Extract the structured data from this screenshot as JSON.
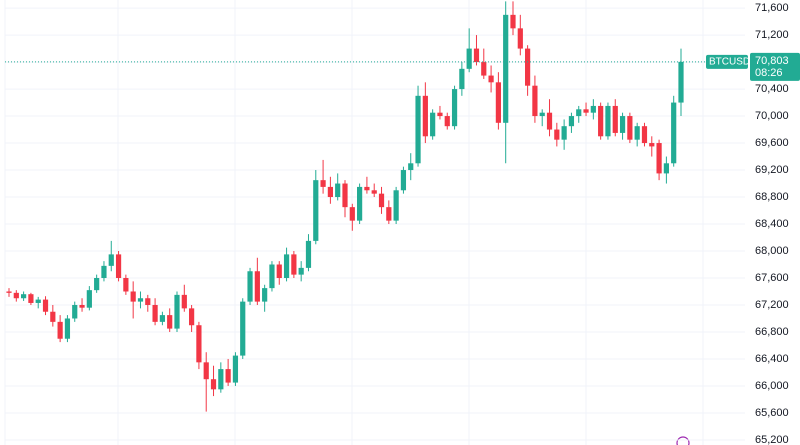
{
  "chart_data": {
    "type": "candlestick",
    "up_color": "#22ab94",
    "down_color": "#f23645",
    "grid": true,
    "ylim": [
      65125,
      71720
    ],
    "yticks": [
      {
        "value": 65200,
        "label": "65,200"
      },
      {
        "value": 65600,
        "label": "65,600"
      },
      {
        "value": 66000,
        "label": "66,000"
      },
      {
        "value": 66400,
        "label": "66,400"
      },
      {
        "value": 66800,
        "label": "66,800"
      },
      {
        "value": 67200,
        "label": "67,200"
      },
      {
        "value": 67600,
        "label": "67,600"
      },
      {
        "value": 68000,
        "label": "68,000"
      },
      {
        "value": 68400,
        "label": "68,400"
      },
      {
        "value": 68800,
        "label": "68,800"
      },
      {
        "value": 69200,
        "label": "69,200"
      },
      {
        "value": 69600,
        "label": "69,600"
      },
      {
        "value": 70000,
        "label": "70,000"
      },
      {
        "value": 70400,
        "label": "70,400"
      },
      {
        "value": 70800,
        "label": "70,800"
      },
      {
        "value": 71200,
        "label": "71,200"
      },
      {
        "value": 71600,
        "label": "71,600"
      }
    ],
    "last_price": {
      "symbol": "BTCUSD",
      "value": 70803,
      "label": "70,803",
      "countdown": "08:26"
    },
    "candles": [
      [
        67400,
        67450,
        67320,
        67380
      ],
      [
        67380,
        67420,
        67250,
        67300
      ],
      [
        67300,
        67400,
        67260,
        67360
      ],
      [
        67360,
        67380,
        67200,
        67230
      ],
      [
        67230,
        67320,
        67150,
        67280
      ],
      [
        67280,
        67330,
        67050,
        67100
      ],
      [
        67100,
        67200,
        66880,
        66950
      ],
      [
        66950,
        67050,
        66650,
        66700
      ],
      [
        66700,
        67050,
        66650,
        67000
      ],
      [
        67000,
        67250,
        66950,
        67200
      ],
      [
        67200,
        67300,
        67100,
        67160
      ],
      [
        67160,
        67480,
        67120,
        67420
      ],
      [
        67420,
        67650,
        67380,
        67600
      ],
      [
        67600,
        67850,
        67550,
        67780
      ],
      [
        67780,
        68150,
        67700,
        67950
      ],
      [
        67950,
        68000,
        67550,
        67600
      ],
      [
        67600,
        67650,
        67350,
        67400
      ],
      [
        67400,
        67550,
        67000,
        67250
      ],
      [
        67250,
        67400,
        67150,
        67300
      ],
      [
        67300,
        67350,
        67100,
        67200
      ],
      [
        67200,
        67300,
        66900,
        66950
      ],
      [
        66950,
        67100,
        66900,
        67050
      ],
      [
        67050,
        67150,
        66800,
        66850
      ],
      [
        66850,
        67400,
        66800,
        67350
      ],
      [
        67350,
        67500,
        67100,
        67150
      ],
      [
        67150,
        67200,
        66800,
        66900
      ],
      [
        66900,
        66950,
        66250,
        66350
      ],
      [
        66350,
        66500,
        65620,
        66100
      ],
      [
        66100,
        66300,
        65850,
        65950
      ],
      [
        65950,
        66350,
        65900,
        66250
      ],
      [
        66250,
        66400,
        66000,
        66050
      ],
      [
        66050,
        66500,
        66000,
        66450
      ],
      [
        66450,
        67300,
        66400,
        67250
      ],
      [
        67250,
        67750,
        67200,
        67700
      ],
      [
        67700,
        67900,
        67200,
        67250
      ],
      [
        67250,
        67500,
        67100,
        67450
      ],
      [
        67450,
        67850,
        67400,
        67800
      ],
      [
        67800,
        67850,
        67500,
        67600
      ],
      [
        67600,
        68050,
        67550,
        67950
      ],
      [
        67950,
        68000,
        67600,
        67650
      ],
      [
        67650,
        67850,
        67550,
        67750
      ],
      [
        67750,
        68250,
        67700,
        68150
      ],
      [
        68150,
        69200,
        68100,
        69050
      ],
      [
        69050,
        69350,
        68850,
        68950
      ],
      [
        68950,
        69100,
        68700,
        68800
      ],
      [
        68800,
        69150,
        68750,
        69000
      ],
      [
        69000,
        69050,
        68500,
        68650
      ],
      [
        68650,
        68700,
        68300,
        68450
      ],
      [
        68450,
        69000,
        68400,
        68950
      ],
      [
        68950,
        69100,
        68850,
        68900
      ],
      [
        68900,
        69000,
        68800,
        68850
      ],
      [
        68850,
        68950,
        68550,
        68650
      ],
      [
        68650,
        68750,
        68400,
        68450
      ],
      [
        68450,
        68950,
        68400,
        68900
      ],
      [
        68900,
        69250,
        68850,
        69200
      ],
      [
        69200,
        69450,
        69050,
        69300
      ],
      [
        69300,
        70450,
        69250,
        70300
      ],
      [
        70300,
        70500,
        69600,
        69700
      ],
      [
        69700,
        70100,
        69650,
        70050
      ],
      [
        70050,
        70150,
        69950,
        70000
      ],
      [
        70000,
        70050,
        69800,
        69850
      ],
      [
        69850,
        70450,
        69800,
        70400
      ],
      [
        70400,
        70800,
        70300,
        70700
      ],
      [
        70700,
        71300,
        70650,
        71000
      ],
      [
        71000,
        71200,
        70750,
        70800
      ],
      [
        70800,
        71000,
        70550,
        70600
      ],
      [
        70600,
        70750,
        70350,
        70500
      ],
      [
        70500,
        70650,
        69800,
        69900
      ],
      [
        69900,
        71700,
        69300,
        71500
      ],
      [
        71500,
        71700,
        71200,
        71300
      ],
      [
        71300,
        71500,
        70900,
        71000
      ],
      [
        71000,
        71050,
        70300,
        70450
      ],
      [
        70450,
        70600,
        69900,
        70000
      ],
      [
        70000,
        70100,
        69850,
        70050
      ],
      [
        70050,
        70250,
        69700,
        69800
      ],
      [
        69800,
        69900,
        69550,
        69650
      ],
      [
        69650,
        69950,
        69500,
        69850
      ],
      [
        69850,
        70050,
        69750,
        70000
      ],
      [
        70000,
        70150,
        69900,
        70100
      ],
      [
        70100,
        70200,
        70000,
        70050
      ],
      [
        70050,
        70250,
        69950,
        70150
      ],
      [
        70150,
        70200,
        69650,
        69700
      ],
      [
        69700,
        70200,
        69650,
        70150
      ],
      [
        70150,
        70250,
        69700,
        69750
      ],
      [
        69750,
        70050,
        69650,
        70000
      ],
      [
        70000,
        70050,
        69600,
        69650
      ],
      [
        69650,
        69900,
        69550,
        69850
      ],
      [
        69850,
        69900,
        69550,
        69600
      ],
      [
        69600,
        69700,
        69400,
        69550
      ],
      [
        69600,
        69650,
        69050,
        69150
      ],
      [
        69150,
        69400,
        69000,
        69300
      ],
      [
        69300,
        70300,
        69250,
        70200
      ],
      [
        70200,
        71000,
        70000,
        70803
      ]
    ]
  }
}
